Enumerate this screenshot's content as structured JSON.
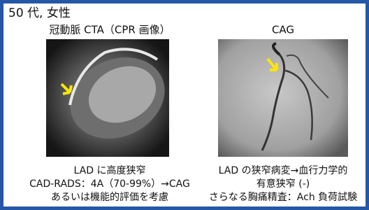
{
  "title": "50 代, 女性",
  "panels": [
    {
      "heading": "冠動脈 CTA（CPR 画像）",
      "caption": [
        "LAD に高度狭窄",
        "CAD-RADS：4A（70-99%）→CAG",
        "あるいは機能的評価を考慮"
      ]
    },
    {
      "heading": "CAG",
      "caption": [
        "LAD の狭窄病変→血行力学的",
        "有意狭窄 (-)",
        "さらなる胸痛精査：Ach 負荷試験"
      ]
    }
  ]
}
